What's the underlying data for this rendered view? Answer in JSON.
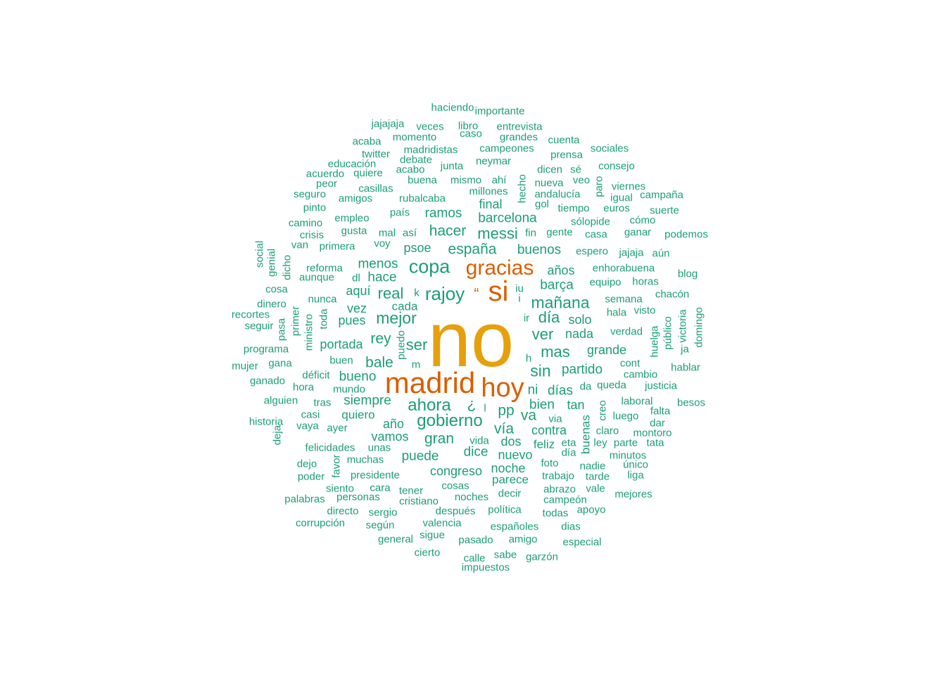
{
  "colors": {
    "primary": "#1b9e77",
    "secondary": "#d95f02",
    "top": "#e6a00c"
  },
  "words": [
    {
      "t": "no",
      "w": 180
    },
    {
      "t": "madrid",
      "w": 55
    },
    {
      "t": "si",
      "w": 55
    },
    {
      "t": "hoy",
      "w": 55
    },
    {
      "t": "gracias",
      "w": 50
    },
    {
      "t": "copa",
      "w": 28
    },
    {
      "t": "rajoy",
      "w": 28
    },
    {
      "t": "gobierno",
      "w": 28
    },
    {
      "t": "ahora",
      "w": 28
    },
    {
      "t": "mejor",
      "w": 28
    },
    {
      "t": "mañana",
      "w": 28
    },
    {
      "t": "messi",
      "w": 22
    },
    {
      "t": "españa",
      "w": 22
    },
    {
      "t": "hacer",
      "w": 22
    },
    {
      "t": "sin",
      "w": 22
    },
    {
      "t": "mas",
      "w": 22
    },
    {
      "t": "día",
      "w": 22
    },
    {
      "t": "ver",
      "w": 22
    },
    {
      "t": "real",
      "w": 22
    },
    {
      "t": "ser",
      "w": 22
    },
    {
      "t": "rey",
      "w": 22
    },
    {
      "t": "gran",
      "w": 22
    },
    {
      "t": "pp",
      "w": 22
    },
    {
      "t": "vía",
      "w": 22
    },
    {
      "t": "bale",
      "w": 22
    },
    {
      "t": "va",
      "w": 22
    },
    {
      "t": "¿",
      "w": 22
    },
    {
      "t": "“",
      "w": 22
    },
    {
      "t": "barcelona",
      "w": 17
    },
    {
      "t": "buenos",
      "w": 17
    },
    {
      "t": "barça",
      "w": 17
    },
    {
      "t": "hace",
      "w": 17
    },
    {
      "t": "menos",
      "w": 17
    },
    {
      "t": "psoe",
      "w": 17
    },
    {
      "t": "ramos",
      "w": 17
    },
    {
      "t": "final",
      "w": 17
    },
    {
      "t": "años",
      "w": 17
    },
    {
      "t": "nada",
      "w": 17
    },
    {
      "t": "solo",
      "w": 17
    },
    {
      "t": "grande",
      "w": 17
    },
    {
      "t": "partido",
      "w": 17
    },
    {
      "t": "días",
      "w": 17
    },
    {
      "t": "bien",
      "w": 17
    },
    {
      "t": "tan",
      "w": 17
    },
    {
      "t": "ni",
      "w": 17
    },
    {
      "t": "siempre",
      "w": 17
    },
    {
      "t": "bueno",
      "w": 17
    },
    {
      "t": "portada",
      "w": 17
    },
    {
      "t": "aquí",
      "w": 17
    },
    {
      "t": "cada",
      "w": 17
    },
    {
      "t": "vez",
      "w": 17
    },
    {
      "t": "pues",
      "w": 17
    },
    {
      "t": "contra",
      "w": 17
    },
    {
      "t": "dos",
      "w": 17
    },
    {
      "t": "dice",
      "w": 17
    },
    {
      "t": "puede",
      "w": 17
    },
    {
      "t": "nuevo",
      "w": 17
    },
    {
      "t": "congreso",
      "w": 17
    },
    {
      "t": "vamos",
      "w": 17
    },
    {
      "t": "año",
      "w": 17
    },
    {
      "t": "quiero",
      "w": 17
    },
    {
      "t": "feliz",
      "w": 17
    },
    {
      "t": "noche",
      "w": 17
    },
    {
      "t": "parece",
      "w": 17
    },
    {
      "t": "buenas",
      "w": 17
    },
    {
      "t": "haciendo",
      "w": 9
    },
    {
      "t": "importante",
      "w": 9
    },
    {
      "t": "jajajaja",
      "w": 9
    },
    {
      "t": "veces",
      "w": 9
    },
    {
      "t": "libro",
      "w": 9
    },
    {
      "t": "entrevista",
      "w": 9
    },
    {
      "t": "caso",
      "w": 9
    },
    {
      "t": "acaba",
      "w": 9
    },
    {
      "t": "momento",
      "w": 9
    },
    {
      "t": "grandes",
      "w": 9
    },
    {
      "t": "cuenta",
      "w": 9
    },
    {
      "t": "twitter",
      "w": 9
    },
    {
      "t": "madridistas",
      "w": 9
    },
    {
      "t": "campeones",
      "w": 9
    },
    {
      "t": "prensa",
      "w": 9
    },
    {
      "t": "sociales",
      "w": 9
    },
    {
      "t": "educación",
      "w": 9
    },
    {
      "t": "debate",
      "w": 9
    },
    {
      "t": "neymar",
      "w": 9
    },
    {
      "t": "acuerdo",
      "w": 9
    },
    {
      "t": "quiere",
      "w": 9
    },
    {
      "t": "acabo",
      "w": 9
    },
    {
      "t": "junta",
      "w": 9
    },
    {
      "t": "dicen",
      "w": 9
    },
    {
      "t": "sé",
      "w": 9
    },
    {
      "t": "consejo",
      "w": 9
    },
    {
      "t": "peor",
      "w": 9
    },
    {
      "t": "buena",
      "w": 9
    },
    {
      "t": "mismo",
      "w": 9
    },
    {
      "t": "ahí",
      "w": 9
    },
    {
      "t": "hecho",
      "w": 9
    },
    {
      "t": "nueva",
      "w": 9
    },
    {
      "t": "veo",
      "w": 9
    },
    {
      "t": "paro",
      "w": 9
    },
    {
      "t": "viernes",
      "w": 9
    },
    {
      "t": "casillas",
      "w": 9
    },
    {
      "t": "millones",
      "w": 9
    },
    {
      "t": "seguro",
      "w": 9
    },
    {
      "t": "amigos",
      "w": 9
    },
    {
      "t": "rubalcaba",
      "w": 9
    },
    {
      "t": "andalucía",
      "w": 9
    },
    {
      "t": "igual",
      "w": 9
    },
    {
      "t": "campaña",
      "w": 9
    },
    {
      "t": "pinto",
      "w": 9
    },
    {
      "t": "gol",
      "w": 9
    },
    {
      "t": "tiempo",
      "w": 9
    },
    {
      "t": "euros",
      "w": 9
    },
    {
      "t": "suerte",
      "w": 9
    },
    {
      "t": "país",
      "w": 9
    },
    {
      "t": "empleo",
      "w": 9
    },
    {
      "t": "camino",
      "w": 9
    },
    {
      "t": "sólopide",
      "w": 9
    },
    {
      "t": "cómo",
      "w": 9
    },
    {
      "t": "gusta",
      "w": 9
    },
    {
      "t": "mal",
      "w": 9
    },
    {
      "t": "así",
      "w": 9
    },
    {
      "t": "fin",
      "w": 9
    },
    {
      "t": "gente",
      "w": 9
    },
    {
      "t": "casa",
      "w": 9
    },
    {
      "t": "ganar",
      "w": 9
    },
    {
      "t": "podemos",
      "w": 9
    },
    {
      "t": "crisis",
      "w": 9
    },
    {
      "t": "van",
      "w": 9
    },
    {
      "t": "primera",
      "w": 9
    },
    {
      "t": "voy",
      "w": 9
    },
    {
      "t": "social",
      "w": 9
    },
    {
      "t": "genial",
      "w": 9
    },
    {
      "t": "dicho",
      "w": 9
    },
    {
      "t": "espero",
      "w": 9
    },
    {
      "t": "jajaja",
      "w": 9
    },
    {
      "t": "aún",
      "w": 9
    },
    {
      "t": "reforma",
      "w": 9
    },
    {
      "t": "enhorabuena",
      "w": 9
    },
    {
      "t": "aunque",
      "w": 9
    },
    {
      "t": "dl",
      "w": 9
    },
    {
      "t": "blog",
      "w": 9
    },
    {
      "t": "equipo",
      "w": 9
    },
    {
      "t": "horas",
      "w": 9
    },
    {
      "t": "cosa",
      "w": 9
    },
    {
      "t": "k",
      "w": 9
    },
    {
      "t": "iu",
      "w": 9
    },
    {
      "t": "i",
      "w": 9
    },
    {
      "t": "nunca",
      "w": 9
    },
    {
      "t": "chacón",
      "w": 9
    },
    {
      "t": "dinero",
      "w": 9
    },
    {
      "t": "semana",
      "w": 9
    },
    {
      "t": "recortes",
      "w": 9
    },
    {
      "t": "hala",
      "w": 9
    },
    {
      "t": "visto",
      "w": 9
    },
    {
      "t": "seguir",
      "w": 9
    },
    {
      "t": "pasa",
      "w": 9
    },
    {
      "t": "primer",
      "w": 9
    },
    {
      "t": "ministro",
      "w": 9
    },
    {
      "t": "toda",
      "w": 9
    },
    {
      "t": "ir",
      "w": 9
    },
    {
      "t": "victoria",
      "w": 9
    },
    {
      "t": "domingo",
      "w": 9
    },
    {
      "t": "público",
      "w": 9
    },
    {
      "t": "huelga",
      "w": 9
    },
    {
      "t": "verdad",
      "w": 9
    },
    {
      "t": "programa",
      "w": 9
    },
    {
      "t": "puedo",
      "w": 9
    },
    {
      "t": "ja",
      "w": 9
    },
    {
      "t": "h",
      "w": 9
    },
    {
      "t": "mujer",
      "w": 9
    },
    {
      "t": "gana",
      "w": 9
    },
    {
      "t": "buen",
      "w": 9
    },
    {
      "t": "m",
      "w": 9
    },
    {
      "t": "cont",
      "w": 9
    },
    {
      "t": "hablar",
      "w": 9
    },
    {
      "t": "déficit",
      "w": 9
    },
    {
      "t": "cambio",
      "w": 9
    },
    {
      "t": "ganado",
      "w": 9
    },
    {
      "t": "hora",
      "w": 9
    },
    {
      "t": "mundo",
      "w": 9
    },
    {
      "t": "da",
      "w": 9
    },
    {
      "t": "queda",
      "w": 9
    },
    {
      "t": "justicia",
      "w": 9
    },
    {
      "t": "alguien",
      "w": 9
    },
    {
      "t": "tras",
      "w": 9
    },
    {
      "t": "l",
      "w": 9
    },
    {
      "t": "laboral",
      "w": 9
    },
    {
      "t": "besos",
      "w": 9
    },
    {
      "t": "creo",
      "w": 9
    },
    {
      "t": "casi",
      "w": 9
    },
    {
      "t": "via",
      "w": 9
    },
    {
      "t": "falta",
      "w": 9
    },
    {
      "t": "luego",
      "w": 9
    },
    {
      "t": "historia",
      "w": 9
    },
    {
      "t": "vaya",
      "w": 9
    },
    {
      "t": "ayer",
      "w": 9
    },
    {
      "t": "dar",
      "w": 9
    },
    {
      "t": "deja",
      "w": 9
    },
    {
      "t": "claro",
      "w": 9
    },
    {
      "t": "montoro",
      "w": 9
    },
    {
      "t": "eta",
      "w": 9
    },
    {
      "t": "ley",
      "w": 9
    },
    {
      "t": "parte",
      "w": 9
    },
    {
      "t": "tata",
      "w": 9
    },
    {
      "t": "felicidades",
      "w": 9
    },
    {
      "t": "unas",
      "w": 9
    },
    {
      "t": "vida",
      "w": 9
    },
    {
      "t": "día",
      "w": 9
    },
    {
      "t": "minutos",
      "w": 9
    },
    {
      "t": "favor",
      "w": 9
    },
    {
      "t": "muchas",
      "w": 9
    },
    {
      "t": "dejo",
      "w": 9
    },
    {
      "t": "foto",
      "w": 9
    },
    {
      "t": "nadie",
      "w": 9
    },
    {
      "t": "único",
      "w": 9
    },
    {
      "t": "presidente",
      "w": 9
    },
    {
      "t": "poder",
      "w": 9
    },
    {
      "t": "trabajo",
      "w": 9
    },
    {
      "t": "tarde",
      "w": 9
    },
    {
      "t": "liga",
      "w": 9
    },
    {
      "t": "siento",
      "w": 9
    },
    {
      "t": "cara",
      "w": 9
    },
    {
      "t": "tener",
      "w": 9
    },
    {
      "t": "cosas",
      "w": 9
    },
    {
      "t": "abrazo",
      "w": 9
    },
    {
      "t": "vale",
      "w": 9
    },
    {
      "t": "decir",
      "w": 9
    },
    {
      "t": "mejores",
      "w": 9
    },
    {
      "t": "palabras",
      "w": 9
    },
    {
      "t": "personas",
      "w": 9
    },
    {
      "t": "cristiano",
      "w": 9
    },
    {
      "t": "noches",
      "w": 9
    },
    {
      "t": "campeón",
      "w": 9
    },
    {
      "t": "directo",
      "w": 9
    },
    {
      "t": "sergio",
      "w": 9
    },
    {
      "t": "después",
      "w": 9
    },
    {
      "t": "política",
      "w": 9
    },
    {
      "t": "todas",
      "w": 9
    },
    {
      "t": "apoyo",
      "w": 9
    },
    {
      "t": "corrupción",
      "w": 9
    },
    {
      "t": "según",
      "w": 9
    },
    {
      "t": "valencia",
      "w": 9
    },
    {
      "t": "españoles",
      "w": 9
    },
    {
      "t": "dias",
      "w": 9
    },
    {
      "t": "general",
      "w": 9
    },
    {
      "t": "sigue",
      "w": 9
    },
    {
      "t": "pasado",
      "w": 9
    },
    {
      "t": "amigo",
      "w": 9
    },
    {
      "t": "especial",
      "w": 9
    },
    {
      "t": "cierto",
      "w": 9
    },
    {
      "t": "calle",
      "w": 9
    },
    {
      "t": "sabe",
      "w": 9
    },
    {
      "t": "garzón",
      "w": 9
    },
    {
      "t": "impuestos",
      "w": 9
    }
  ]
}
